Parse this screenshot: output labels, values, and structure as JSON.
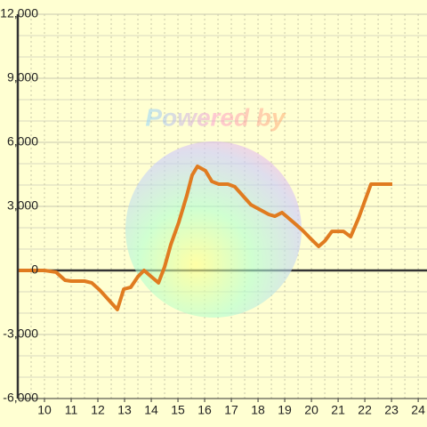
{
  "chart_data": {
    "type": "line",
    "watermark": "Powered by",
    "x": [
      9,
      10,
      10.43,
      10.77,
      11,
      11.5,
      11.77,
      12.07,
      12.4,
      12.73,
      12.97,
      13.23,
      13.5,
      13.73,
      14,
      14.27,
      14.5,
      14.73,
      15.03,
      15.33,
      15.53,
      15.73,
      16.03,
      16.27,
      16.53,
      16.87,
      17.13,
      17.43,
      17.73,
      18.03,
      18.4,
      18.63,
      18.9,
      19.33,
      19.67,
      19.93,
      20.27,
      20.5,
      20.77,
      21.2,
      21.47,
      21.77,
      22,
      22.23,
      23.03
    ],
    "series": [
      {
        "color": "#e07b20",
        "values": [
          0,
          0,
          -80,
          -460,
          -500,
          -500,
          -580,
          -920,
          -1375,
          -1830,
          -875,
          -790,
          -290,
          0,
          -290,
          -580,
          170,
          1200,
          2250,
          3500,
          4460,
          4875,
          4670,
          4170,
          4040,
          4040,
          3920,
          3500,
          3080,
          2875,
          2625,
          2540,
          2710,
          2250,
          1875,
          1540,
          1125,
          1375,
          1830,
          1830,
          1580,
          2460,
          3250,
          4040,
          4040
        ]
      }
    ],
    "xlim": [
      9,
      24.33
    ],
    "xticks": [
      10,
      11,
      12,
      13,
      14,
      15,
      16,
      17,
      18,
      19,
      20,
      21,
      22,
      23,
      24
    ],
    "ylim": [
      -6000,
      12000
    ],
    "yticks": [
      {
        "value": -6000,
        "label": "-6,000"
      },
      {
        "value": -3000,
        "label": "-3,000"
      },
      0,
      {
        "value": 3000,
        "label": "3,000"
      },
      {
        "value": 6000,
        "label": "6,000"
      },
      {
        "value": 9000,
        "label": "9,000"
      },
      {
        "value": 12000,
        "label": "12,000"
      }
    ],
    "grid": true
  }
}
